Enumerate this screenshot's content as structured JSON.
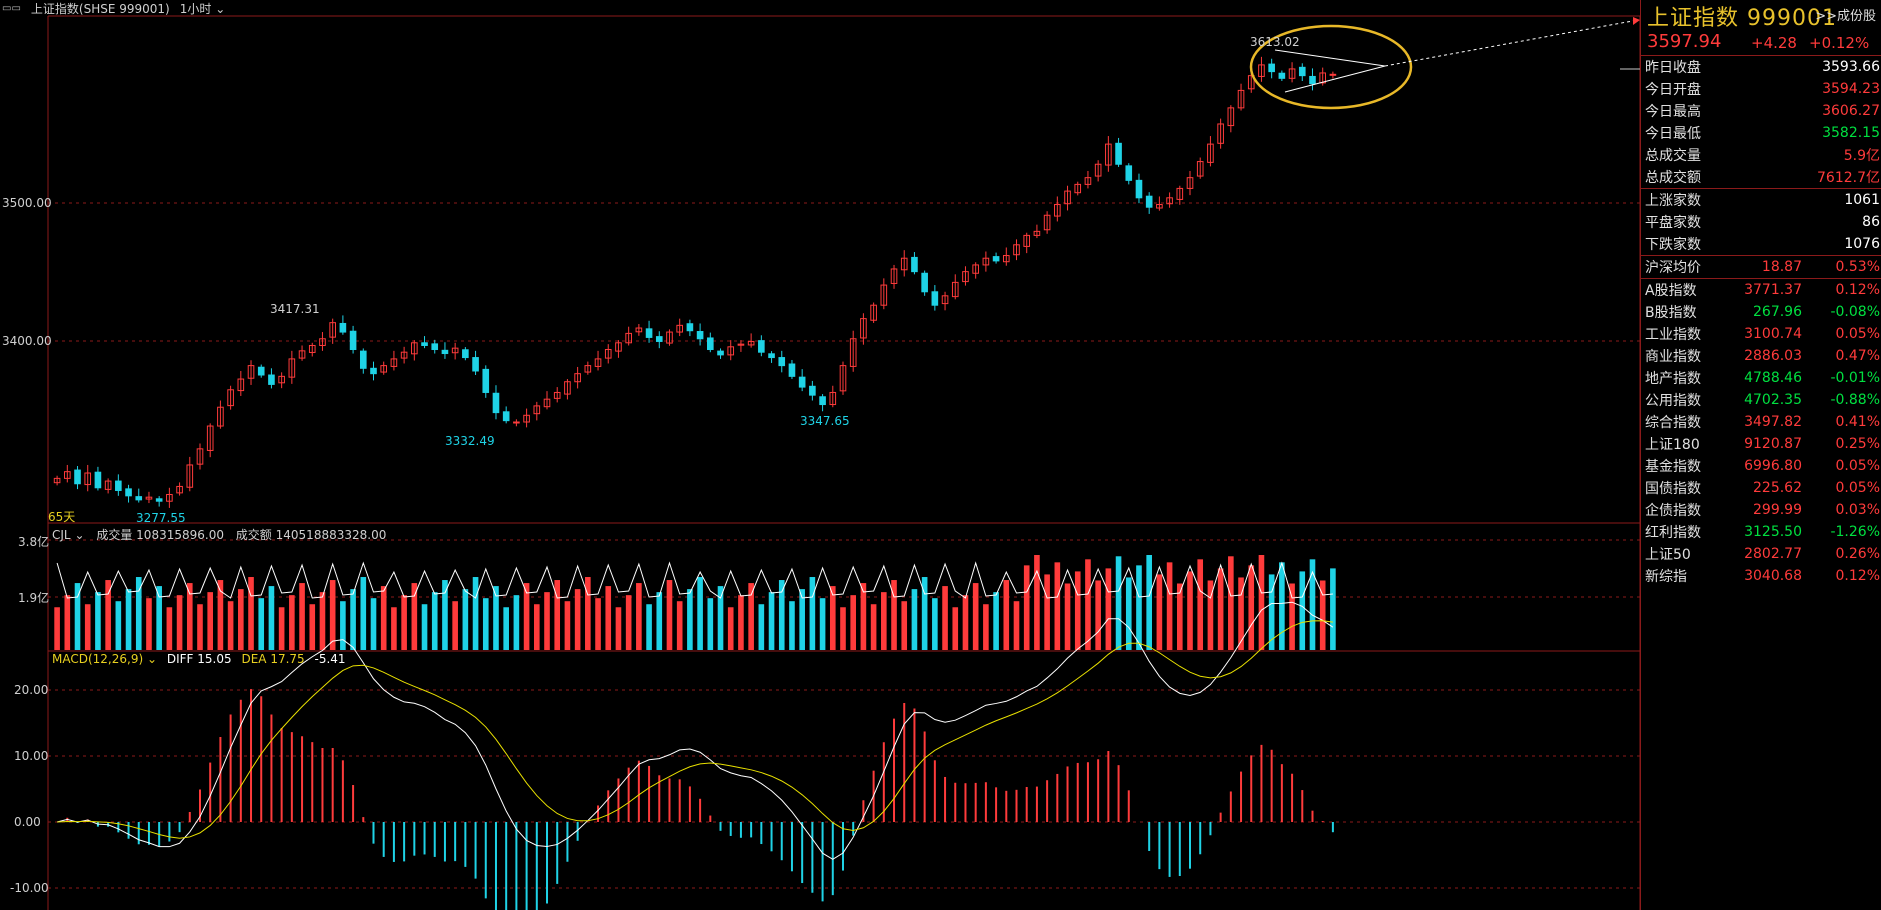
{
  "header": {
    "title": "上证指数(SHSE 999001)",
    "period": "1小时",
    "period_caret": "⌄"
  },
  "quote": {
    "name": "上证指数",
    "code": "999001",
    "link": ">>成份股",
    "price": "3597.94",
    "change": "+4.28",
    "pct": "+0.12%"
  },
  "stats": [
    {
      "label": "昨日收盘",
      "value": "3593.66",
      "color": "white"
    },
    {
      "label": "今日开盘",
      "value": "3594.23",
      "color": "red"
    },
    {
      "label": "今日最高",
      "value": "3606.27",
      "color": "red"
    },
    {
      "label": "今日最低",
      "value": "3582.15",
      "color": "green"
    },
    {
      "label": "总成交量",
      "value": "5.9亿",
      "color": "red"
    },
    {
      "label": "总成交额",
      "value": "7612.7亿",
      "color": "red"
    }
  ],
  "breadth": [
    {
      "label": "上涨家数",
      "value": "1061",
      "color": "white"
    },
    {
      "label": "平盘家数",
      "value": "86",
      "color": "white"
    },
    {
      "label": "下跌家数",
      "value": "1076",
      "color": "white"
    }
  ],
  "avg": {
    "label": "沪深均价",
    "value": "18.87",
    "pct": "0.53%"
  },
  "indices": [
    {
      "label": "A股指数",
      "value": "3771.37",
      "pct": "0.12%",
      "color": "red"
    },
    {
      "label": "B股指数",
      "value": "267.96",
      "pct": "-0.08%",
      "color": "green"
    },
    {
      "label": "工业指数",
      "value": "3100.74",
      "pct": "0.05%",
      "color": "red"
    },
    {
      "label": "商业指数",
      "value": "2886.03",
      "pct": "0.47%",
      "color": "red"
    },
    {
      "label": "地产指数",
      "value": "4788.46",
      "pct": "-0.01%",
      "color": "green"
    },
    {
      "label": "公用指数",
      "value": "4702.35",
      "pct": "-0.88%",
      "color": "green"
    },
    {
      "label": "综合指数",
      "value": "3497.82",
      "pct": "0.41%",
      "color": "red"
    },
    {
      "label": "上证180",
      "value": "9120.87",
      "pct": "0.25%",
      "color": "red"
    },
    {
      "label": "基金指数",
      "value": "6996.80",
      "pct": "0.05%",
      "color": "red"
    },
    {
      "label": "国债指数",
      "value": "225.62",
      "pct": "0.05%",
      "color": "red"
    },
    {
      "label": "企债指数",
      "value": "299.99",
      "pct": "0.03%",
      "color": "red"
    },
    {
      "label": "红利指数",
      "value": "3125.50",
      "pct": "-1.26%",
      "color": "green"
    },
    {
      "label": "上证50",
      "value": "2802.77",
      "pct": "0.26%",
      "color": "red"
    },
    {
      "label": "新综指",
      "value": "3040.68",
      "pct": "0.12%",
      "color": "red"
    }
  ],
  "price_axis": {
    "labels": [
      "3500.00",
      "3400.00"
    ]
  },
  "annotations": {
    "high1": "3417.31",
    "low0": "3277.55",
    "low1": "3332.49",
    "low2": "3347.65",
    "high2": "3613.02",
    "days": "65天"
  },
  "volume": {
    "label": "CJL",
    "caret": "⌄",
    "vol_label": "成交量",
    "vol": "108315896.00",
    "amt_label": "成交额",
    "amt": "140518883328.00",
    "axis": [
      "3.8亿",
      "1.9亿"
    ]
  },
  "macd": {
    "label": "MACD(12,26,9)",
    "caret": "⌄",
    "diff_label": "DIFF",
    "diff": "15.05",
    "dea_label": "DEA",
    "dea": "17.75",
    "macd": "-5.41",
    "axis": [
      "20.00",
      "10.00",
      "0.00",
      "-10.00"
    ]
  },
  "colors": {
    "up": "#ff3b3b",
    "down": "#1fd3e6",
    "grid": "#8b1a1a",
    "gold": "#e8b828",
    "diff": "#ffffff",
    "dea": "#e8e000"
  },
  "chart_data": {
    "type": "candlestick",
    "ylim": [
      3265,
      3630
    ],
    "closes": [
      3296,
      3301,
      3292,
      3300,
      3289,
      3294,
      3287,
      3283,
      3280,
      3282,
      3279,
      3284,
      3290,
      3306,
      3318,
      3335,
      3349,
      3362,
      3370,
      3380,
      3373,
      3366,
      3372,
      3385,
      3391,
      3395,
      3400,
      3412,
      3405,
      3392,
      3378,
      3374,
      3380,
      3385,
      3390,
      3397,
      3395,
      3392,
      3389,
      3393,
      3386,
      3376,
      3360,
      3345,
      3339,
      3338,
      3343,
      3350,
      3355,
      3360,
      3368,
      3374,
      3380,
      3385,
      3392,
      3397,
      3404,
      3408,
      3401,
      3398,
      3405,
      3410,
      3406,
      3400,
      3392,
      3388,
      3394,
      3396,
      3398,
      3390,
      3386,
      3380,
      3372,
      3364,
      3358,
      3351,
      3360,
      3380,
      3400,
      3415,
      3425,
      3440,
      3452,
      3460,
      3450,
      3435,
      3425,
      3432,
      3442,
      3450,
      3455,
      3460,
      3458,
      3462,
      3470,
      3477,
      3480,
      3492,
      3500,
      3510,
      3515,
      3520,
      3530,
      3545,
      3530,
      3518,
      3505,
      3498,
      3500,
      3505,
      3512,
      3520,
      3532,
      3545,
      3560,
      3572,
      3585,
      3596,
      3604,
      3599,
      3594,
      3601,
      3596,
      3590,
      3598,
      3597
    ]
  }
}
